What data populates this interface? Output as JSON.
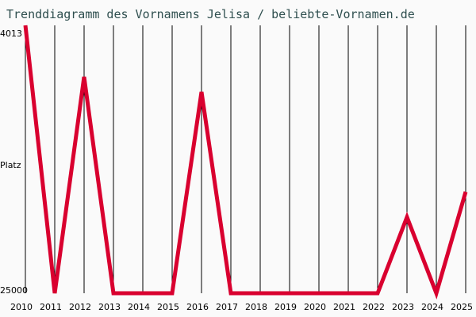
{
  "title": "Trenddiagramm des Vornamens Jelisa / beliebte-Vornamen.de",
  "colors": {
    "background": "#fafafa",
    "title": "#2f4f4f",
    "line": "#d9002f",
    "grid": "#000000"
  },
  "y_axis": {
    "top_label": "4013",
    "middle_label": "Platz",
    "bottom_label": "25000"
  },
  "chart_data": {
    "type": "line",
    "title": "Trenddiagramm des Vornamens Jelisa / beliebte-Vornamen.de",
    "xlabel": "",
    "ylabel": "Platz",
    "ylim": [
      25000,
      4013
    ],
    "y_inverted": true,
    "grid": "vertical",
    "categories": [
      "2010",
      "2011",
      "2012",
      "2013",
      "2014",
      "2015",
      "2016",
      "2017",
      "2018",
      "2019",
      "2020",
      "2021",
      "2022",
      "2023",
      "2024",
      "2025"
    ],
    "series": [
      {
        "name": "Jelisa",
        "values": [
          4013,
          25000,
          8050,
          25000,
          25000,
          25000,
          9230,
          25000,
          25000,
          25000,
          25000,
          25000,
          25000,
          19040,
          25000,
          17050
        ]
      }
    ]
  }
}
